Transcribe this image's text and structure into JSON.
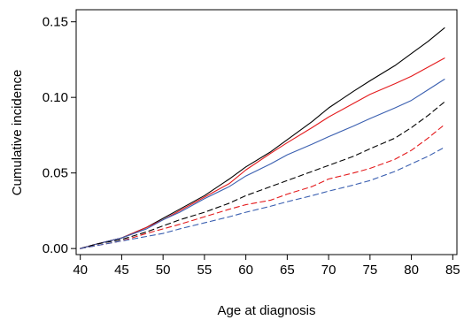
{
  "chart_data": {
    "type": "line",
    "xlabel": "Age at diagnosis",
    "ylabel": "Cumulative incidence",
    "xlim": [
      39.5,
      85.5
    ],
    "ylim": [
      -0.004,
      0.158
    ],
    "xticks": [
      40,
      45,
      50,
      55,
      60,
      65,
      70,
      75,
      80,
      85
    ],
    "yticks": [
      0.0,
      0.05,
      0.1,
      0.15
    ],
    "ytick_labels": [
      "0.00",
      "0.05",
      "0.10",
      "0.15"
    ],
    "grid": false,
    "legend": "none",
    "series": [
      {
        "color": "#000000",
        "dash": "solid",
        "x": [
          40,
          42,
          45,
          48,
          50,
          52,
          55,
          58,
          60,
          63,
          65,
          68,
          70,
          73,
          75,
          78,
          80,
          82,
          84
        ],
        "y": [
          0.0,
          0.003,
          0.007,
          0.014,
          0.02,
          0.026,
          0.035,
          0.046,
          0.054,
          0.064,
          0.072,
          0.084,
          0.093,
          0.104,
          0.111,
          0.121,
          0.129,
          0.137,
          0.146
        ]
      },
      {
        "color": "#e41a1c",
        "dash": "solid",
        "x": [
          40,
          42,
          45,
          48,
          50,
          52,
          55,
          58,
          60,
          63,
          65,
          68,
          70,
          73,
          75,
          78,
          80,
          82,
          84
        ],
        "y": [
          0.0,
          0.003,
          0.007,
          0.014,
          0.019,
          0.025,
          0.034,
          0.043,
          0.052,
          0.063,
          0.07,
          0.08,
          0.087,
          0.096,
          0.102,
          0.109,
          0.114,
          0.12,
          0.126
        ]
      },
      {
        "color": "#3a5fb0",
        "dash": "solid",
        "x": [
          40,
          42,
          45,
          48,
          50,
          52,
          55,
          58,
          60,
          63,
          65,
          68,
          70,
          73,
          75,
          78,
          80,
          82,
          84
        ],
        "y": [
          0.0,
          0.003,
          0.007,
          0.013,
          0.019,
          0.024,
          0.033,
          0.041,
          0.048,
          0.056,
          0.062,
          0.069,
          0.074,
          0.081,
          0.086,
          0.093,
          0.098,
          0.105,
          0.112
        ]
      },
      {
        "color": "#000000",
        "dash": "dashed",
        "x": [
          40,
          42,
          45,
          48,
          50,
          52,
          55,
          58,
          60,
          63,
          65,
          68,
          70,
          73,
          75,
          78,
          80,
          82,
          84
        ],
        "y": [
          0.0,
          0.003,
          0.006,
          0.011,
          0.015,
          0.019,
          0.024,
          0.03,
          0.035,
          0.041,
          0.045,
          0.051,
          0.055,
          0.061,
          0.066,
          0.073,
          0.08,
          0.088,
          0.097
        ]
      },
      {
        "color": "#e41a1c",
        "dash": "dashed",
        "x": [
          40,
          42,
          45,
          48,
          50,
          52,
          55,
          58,
          60,
          63,
          65,
          68,
          70,
          73,
          75,
          78,
          80,
          82,
          84
        ],
        "y": [
          0.0,
          0.002,
          0.005,
          0.01,
          0.013,
          0.016,
          0.021,
          0.026,
          0.029,
          0.032,
          0.036,
          0.041,
          0.046,
          0.05,
          0.053,
          0.059,
          0.065,
          0.073,
          0.082
        ]
      },
      {
        "color": "#3a5fb0",
        "dash": "dashed",
        "x": [
          40,
          42,
          45,
          48,
          50,
          52,
          55,
          58,
          60,
          63,
          65,
          68,
          70,
          73,
          75,
          78,
          80,
          82,
          84
        ],
        "y": [
          0.0,
          0.002,
          0.005,
          0.008,
          0.01,
          0.013,
          0.017,
          0.021,
          0.024,
          0.028,
          0.031,
          0.035,
          0.038,
          0.042,
          0.045,
          0.051,
          0.056,
          0.061,
          0.067
        ]
      }
    ]
  }
}
